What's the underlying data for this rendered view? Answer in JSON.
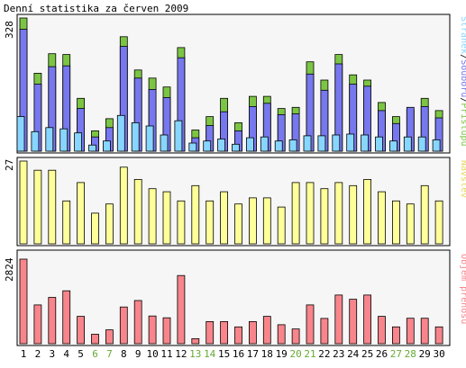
{
  "colors": {
    "background": "#ffffff",
    "panel_bg": "#f6f6f6",
    "panel_border": "#000000",
    "access": "#7cc544",
    "files": "#7777ee",
    "visitors": "#88d6ff",
    "visits": "#ffff99",
    "transfer": "#f7858b",
    "weekend": "#66aa33",
    "text": "#000000"
  },
  "chart_data": [
    {
      "type": "bar",
      "title": "Denní statistika za červen 2009",
      "ylabel": "",
      "ymax_label": "328",
      "ylim": [
        0,
        328
      ],
      "legend_parts": [
        "Stránek",
        "Souborů",
        "Přístupů"
      ],
      "legend_separator": "/",
      "categories": [
        "1",
        "2",
        "3",
        "4",
        "5",
        "6",
        "7",
        "8",
        "9",
        "10",
        "11",
        "12",
        "13",
        "14",
        "15",
        "16",
        "17",
        "18",
        "19",
        "20",
        "21",
        "22",
        "23",
        "24",
        "25",
        "26",
        "27",
        "28",
        "29",
        "30"
      ],
      "weekend_days": [
        "6",
        "7",
        "13",
        "14",
        "20",
        "21",
        "27",
        "28"
      ],
      "series": [
        {
          "name": "Přístupů",
          "values": [
            328,
            192,
            240,
            238,
            130,
            50,
            80,
            282,
            200,
            180,
            158,
            255,
            52,
            85,
            130,
            70,
            135,
            135,
            105,
            108,
            220,
            175,
            238,
            188,
            175,
            120,
            85,
            102,
            130,
            100
          ]
        },
        {
          "name": "Souborů",
          "values": [
            300,
            165,
            208,
            210,
            105,
            35,
            58,
            258,
            180,
            152,
            132,
            230,
            33,
            63,
            97,
            50,
            110,
            118,
            90,
            92,
            190,
            150,
            215,
            165,
            160,
            100,
            68,
            108,
            110,
            82
          ]
        },
        {
          "name": "Stránek",
          "values": [
            85,
            48,
            58,
            55,
            45,
            15,
            25,
            88,
            70,
            62,
            40,
            75,
            20,
            25,
            30,
            17,
            33,
            35,
            25,
            28,
            38,
            38,
            40,
            42,
            40,
            35,
            25,
            35,
            35,
            28
          ]
        }
      ]
    },
    {
      "type": "bar",
      "ylabel": "Návštěv",
      "ymax_label": "27",
      "ylim": [
        0,
        27
      ],
      "categories": [
        "1",
        "2",
        "3",
        "4",
        "5",
        "6",
        "7",
        "8",
        "9",
        "10",
        "11",
        "12",
        "13",
        "14",
        "15",
        "16",
        "17",
        "18",
        "19",
        "20",
        "21",
        "22",
        "23",
        "24",
        "25",
        "26",
        "27",
        "28",
        "29",
        "30"
      ],
      "series": [
        {
          "name": "Návštěv",
          "values": [
            27,
            24,
            24,
            14,
            20,
            10,
            13,
            25,
            21,
            18,
            17,
            14,
            19,
            14,
            17,
            13,
            15,
            15,
            12,
            20,
            20,
            18,
            20,
            19,
            21,
            17,
            14,
            13,
            19,
            14
          ]
        }
      ]
    },
    {
      "type": "bar",
      "ylabel": "Objem přenosu",
      "ymax_label": "2824",
      "ylim": [
        0,
        2824
      ],
      "categories": [
        "1",
        "2",
        "3",
        "4",
        "5",
        "6",
        "7",
        "8",
        "9",
        "10",
        "11",
        "12",
        "13",
        "14",
        "15",
        "16",
        "17",
        "18",
        "19",
        "20",
        "21",
        "22",
        "23",
        "24",
        "25",
        "26",
        "27",
        "28",
        "29",
        "30"
      ],
      "series": [
        {
          "name": "Objem přenosu",
          "values": [
            2824,
            1294,
            1547,
            1767,
            913,
            316,
            464,
            1225,
            1442,
            924,
            864,
            2278,
            169,
            738,
            738,
            562,
            738,
            913,
            633,
            492,
            1294,
            845,
            1625,
            1485,
            1625,
            913,
            562,
            851,
            851,
            562
          ]
        }
      ]
    }
  ]
}
